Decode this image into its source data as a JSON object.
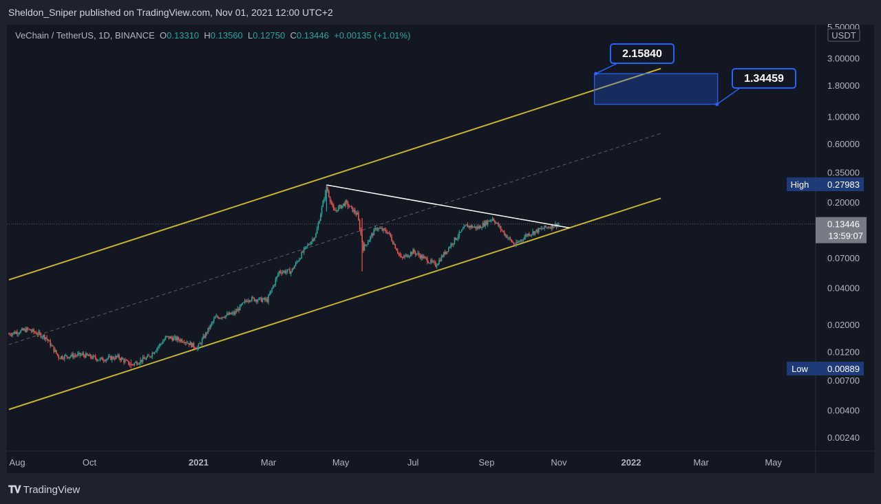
{
  "header": {
    "published": "Sheldon_Sniper published on TradingView.com, Nov 01, 2021 12:00 UTC+2"
  },
  "legend": {
    "symbol": "VeChain / TetherUS, 1D, BINANCE",
    "o_label": "O",
    "o": "0.13310",
    "h_label": "H",
    "h": "0.13560",
    "l_label": "L",
    "l": "0.12750",
    "c_label": "C",
    "c": "0.13446",
    "change": "+0.00135 (+1.01%)"
  },
  "colors": {
    "background": "#131722",
    "channel": "#c9b431",
    "trendline": "#ffffff",
    "up": "#26a69a",
    "down": "#ef5350",
    "target_box": "#2962ff",
    "label_bg": "#1e3a78"
  },
  "footer": {
    "brand": "TradingView",
    "logo_icon": "tradingview-logo-icon"
  },
  "chart_data": {
    "type": "candlestick",
    "title": "VeChain / TetherUS, 1D, BINANCE",
    "scale": "log",
    "currency_label": "USDT",
    "y_ticks": [
      "5.50000",
      "3.00000",
      "1.80000",
      "1.00000",
      "0.60000",
      "0.35000",
      "0.20000",
      "0.07000",
      "0.04000",
      "0.02000",
      "0.01200",
      "0.00700",
      "0.00400",
      "0.00240"
    ],
    "x_ticks": [
      "Aug",
      "Oct",
      "2021",
      "Mar",
      "May",
      "Jul",
      "Sep",
      "Nov",
      "2022",
      "Mar",
      "May"
    ],
    "x_tick_dates": [
      "2020-08-01",
      "2020-10-01",
      "2021-01-01",
      "2021-03-01",
      "2021-05-01",
      "2021-07-01",
      "2021-09-01",
      "2021-11-01",
      "2022-01-01",
      "2022-03-01",
      "2022-05-01"
    ],
    "last_price": {
      "value": "0.13446",
      "countdown": "13:59:07"
    },
    "high": {
      "label": "High",
      "value": "0.27983"
    },
    "low": {
      "label": "Low",
      "value": "0.00889"
    },
    "targets": [
      {
        "label": "2.15840",
        "value": 2.1584
      },
      {
        "label": "1.34459",
        "value": 1.34459
      }
    ],
    "price_path": [
      {
        "date": "2020-07-25",
        "close": 0.017
      },
      {
        "date": "2020-08-10",
        "close": 0.0185
      },
      {
        "date": "2020-08-25",
        "close": 0.016
      },
      {
        "date": "2020-09-05",
        "close": 0.011
      },
      {
        "date": "2020-09-25",
        "close": 0.0115
      },
      {
        "date": "2020-10-10",
        "close": 0.0105
      },
      {
        "date": "2020-10-25",
        "close": 0.011
      },
      {
        "date": "2020-11-05",
        "close": 0.0095
      },
      {
        "date": "2020-11-20",
        "close": 0.011
      },
      {
        "date": "2020-12-05",
        "close": 0.016
      },
      {
        "date": "2020-12-20",
        "close": 0.015
      },
      {
        "date": "2020-12-31",
        "close": 0.013
      },
      {
        "date": "2021-01-15",
        "close": 0.023
      },
      {
        "date": "2021-01-31",
        "close": 0.025
      },
      {
        "date": "2021-02-12",
        "close": 0.033
      },
      {
        "date": "2021-02-28",
        "close": 0.032
      },
      {
        "date": "2021-03-10",
        "close": 0.055
      },
      {
        "date": "2021-03-20",
        "close": 0.055
      },
      {
        "date": "2021-03-31",
        "close": 0.082
      },
      {
        "date": "2021-04-10",
        "close": 0.11
      },
      {
        "date": "2021-04-19",
        "close": 0.27
      },
      {
        "date": "2021-04-25",
        "close": 0.17
      },
      {
        "date": "2021-05-05",
        "close": 0.2
      },
      {
        "date": "2021-05-15",
        "close": 0.16
      },
      {
        "date": "2021-05-20",
        "close": 0.085
      },
      {
        "date": "2021-05-31",
        "close": 0.125
      },
      {
        "date": "2021-06-10",
        "close": 0.115
      },
      {
        "date": "2021-06-21",
        "close": 0.07
      },
      {
        "date": "2021-07-01",
        "close": 0.08
      },
      {
        "date": "2021-07-20",
        "close": 0.062
      },
      {
        "date": "2021-08-05",
        "close": 0.1
      },
      {
        "date": "2021-08-15",
        "close": 0.13
      },
      {
        "date": "2021-08-25",
        "close": 0.125
      },
      {
        "date": "2021-09-06",
        "close": 0.15
      },
      {
        "date": "2021-09-15",
        "close": 0.115
      },
      {
        "date": "2021-09-25",
        "close": 0.09
      },
      {
        "date": "2021-10-05",
        "close": 0.11
      },
      {
        "date": "2021-10-20",
        "close": 0.125
      },
      {
        "date": "2021-11-01",
        "close": 0.13446
      }
    ],
    "drawings": {
      "channel_upper": [
        {
          "date": "2020-07-25",
          "price": 0.047
        },
        {
          "date": "2022-01-26",
          "price": 2.5
        }
      ],
      "channel_lower": [
        {
          "date": "2020-07-25",
          "price": 0.0041
        },
        {
          "date": "2022-01-26",
          "price": 0.218
        }
      ],
      "channel_mid": [
        {
          "date": "2020-07-25",
          "price": 0.0139
        },
        {
          "date": "2022-01-26",
          "price": 0.738
        }
      ],
      "trendline": [
        {
          "date": "2021-04-19",
          "price": 0.2798
        },
        {
          "date": "2021-11-10",
          "price": 0.125
        }
      ],
      "target_box": {
        "from": "2021-12-01",
        "to": "2022-03-15",
        "top": 2.1584,
        "bottom": 1.34459
      }
    }
  }
}
